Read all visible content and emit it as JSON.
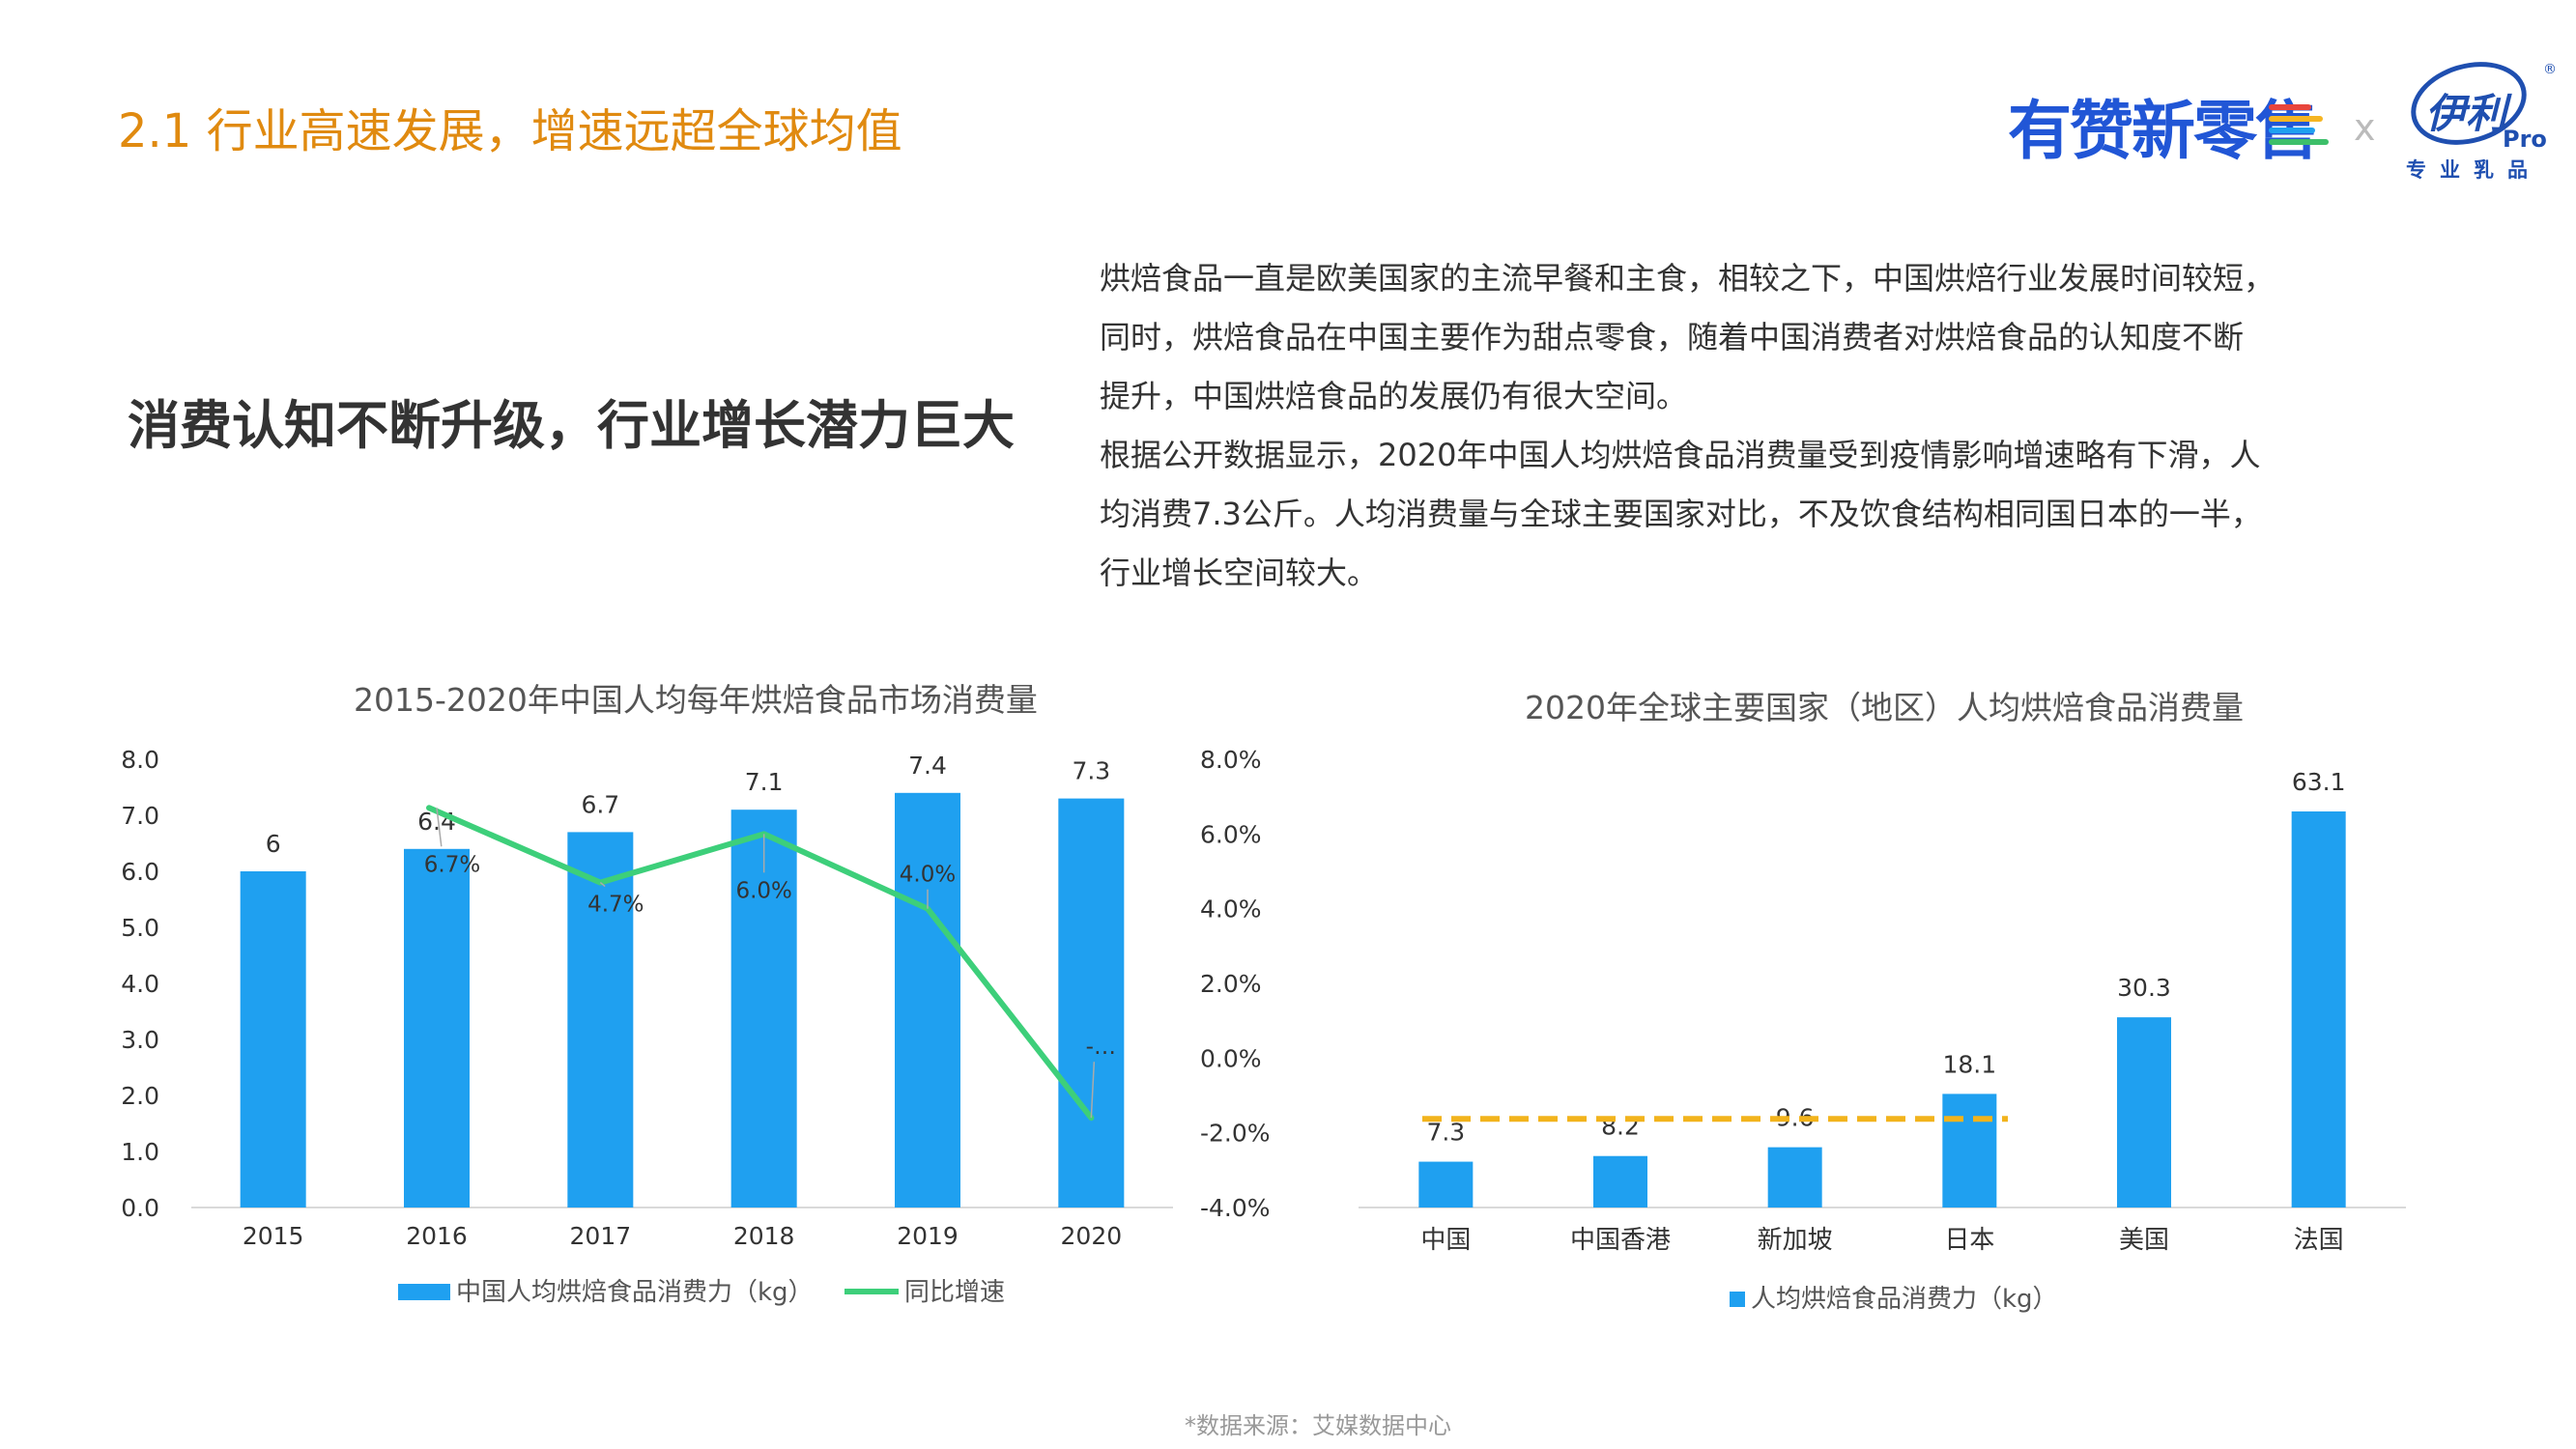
{
  "header": {
    "title": "2.1 行业高速发展，增速远超全球均值",
    "logo_youzan": "有赞新零售",
    "logo_separator": "x",
    "logo_yili": "伊利",
    "logo_yili_registered": "®",
    "logo_yili_pro": "Pro",
    "logo_yili_sub": "专业乳品",
    "colors": {
      "title": "#e08a10",
      "youzan": "#2156d6",
      "yili": "#1f4fb0"
    }
  },
  "headline": "消费认知不断升级，行业增长潜力巨大",
  "body_lines": [
    "烘焙食品一直是欧美国家的主流早餐和主食，相较之下，中国烘焙行业发展时间较短，",
    "同时，烘焙食品在中国主要作为甜点零食，随着中国消费者对烘焙食品的认知度不断",
    "提升，中国烘焙食品的发展仍有很大空间。",
    "根据公开数据显示，2020年中国人均烘焙食品消费量受到疫情影响增速略有下滑，人",
    "均消费7.3公斤。人均消费量与全球主要国家对比，不及饮食结构相同国日本的一半，",
    "行业增长空间较大。"
  ],
  "chart_data": [
    {
      "type": "bar",
      "title": "2015-2020年中国人均每年烘焙食品市场消费量",
      "categories": [
        "2015",
        "2016",
        "2017",
        "2018",
        "2019",
        "2020"
      ],
      "series": [
        {
          "name": "中国人均烘焙食品消费力（kg）",
          "type": "bar",
          "axis": "left",
          "values": [
            6,
            6.4,
            6.7,
            7.1,
            7.4,
            7.3
          ],
          "labels": [
            "6",
            "6.4",
            "6.7",
            "7.1",
            "7.4",
            "7.3"
          ],
          "color": "#1fa0f0"
        },
        {
          "name": "同比增速",
          "type": "line",
          "axis": "right",
          "values": [
            null,
            6.7,
            4.7,
            6.0,
            4.0,
            -1.6
          ],
          "labels": [
            "",
            "6.7%",
            "4.7%",
            "6.0%",
            "4.0%",
            "-…"
          ],
          "color": "#3dcf7a"
        }
      ],
      "y_left": {
        "min": 0,
        "max": 8,
        "ticks": [
          "0.0",
          "1.0",
          "2.0",
          "3.0",
          "4.0",
          "5.0",
          "6.0",
          "7.0",
          "8.0"
        ]
      },
      "y_right": {
        "min": -4,
        "max": 8,
        "ticks": [
          "-4.0%",
          "-2.0%",
          "0.0%",
          "2.0%",
          "4.0%",
          "6.0%",
          "8.0%"
        ]
      },
      "legend": "bottom"
    },
    {
      "type": "bar",
      "title": "2020年全球主要国家（地区）人均烘焙食品消费量",
      "categories": [
        "中国",
        "中国香港",
        "新加坡",
        "日本",
        "美国",
        "法国"
      ],
      "series": [
        {
          "name": "人均烘焙食品消费力（kg）",
          "values": [
            7.3,
            8.2,
            9.6,
            18.1,
            30.3,
            63.1
          ],
          "labels": [
            "7.3",
            "8.2",
            "9.6",
            "18.1",
            "30.3",
            "63.1"
          ],
          "color": "#1fa0f0"
        }
      ],
      "reference_line": {
        "color": "#f2b31c",
        "style": "dashed",
        "value": 9.5
      },
      "legend": "bottom"
    }
  ],
  "source": "*数据来源：艾媒数据中心"
}
